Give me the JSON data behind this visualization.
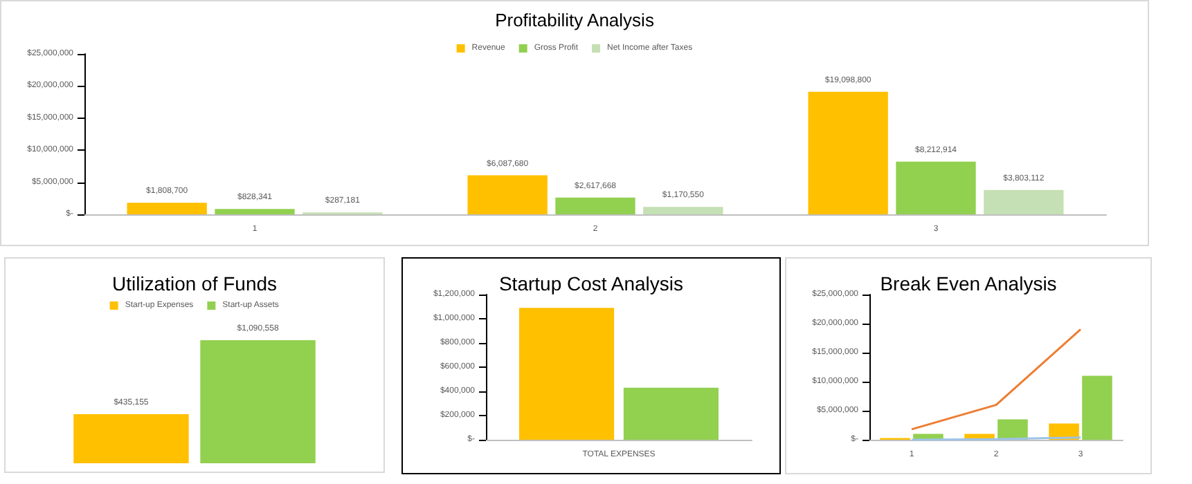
{
  "chart_data": [
    {
      "type": "bar",
      "title": "Profitability Analysis",
      "categories": [
        "1",
        "2",
        "3"
      ],
      "legend": "top",
      "grid": false,
      "ylim": [
        0,
        25000000
      ],
      "yticks": [
        {
          "value": 0,
          "label": "$-"
        },
        {
          "value": 5000000,
          "label": "$5,000,000"
        },
        {
          "value": 10000000,
          "label": "$10,000,000"
        },
        {
          "value": 15000000,
          "label": "$15,000,000"
        },
        {
          "value": 20000000,
          "label": "$20,000,000"
        },
        {
          "value": 25000000,
          "label": "$25,000,000"
        }
      ],
      "series": [
        {
          "name": "Revenue",
          "color": "#ffc000",
          "values": [
            1808700,
            6087680,
            19098800
          ],
          "value_labels": [
            "$1,808,700",
            "$6,087,680",
            "$19,098,800"
          ]
        },
        {
          "name": "Gross Profit",
          "color": "#92d050",
          "values": [
            828341,
            2617668,
            8212914
          ],
          "value_labels": [
            "$828,341",
            "$2,617,668",
            "$8,212,914"
          ]
        },
        {
          "name": "Net Income after Taxes",
          "color": "#c5e0b4",
          "values": [
            287181,
            1170550,
            3803112
          ],
          "value_labels": [
            "$287,181",
            "$1,170,550",
            "$3,803,112"
          ]
        }
      ]
    },
    {
      "type": "bar",
      "title": "Utilization of Funds",
      "categories": [
        null
      ],
      "legend": "top",
      "grid": false,
      "tick_labels": false,
      "series": [
        {
          "name": "Start-up Expenses",
          "color": "#ffc000",
          "values": [
            435155
          ],
          "value_labels": [
            "$435,155"
          ]
        },
        {
          "name": "Start-up Assets",
          "color": "#92d050",
          "values": [
            1090558
          ],
          "value_labels": [
            "$1,090,558"
          ]
        }
      ]
    },
    {
      "type": "bar",
      "title": "Startup Cost Analysis",
      "categories": [
        "TOTAL EXPENSES"
      ],
      "legend": false,
      "grid": false,
      "ylim": [
        0,
        1200000
      ],
      "yticks": [
        {
          "value": 0,
          "label": "$-"
        },
        {
          "value": 200000,
          "label": "$200,000"
        },
        {
          "value": 400000,
          "label": "$400,000"
        },
        {
          "value": 600000,
          "label": "$600,000"
        },
        {
          "value": 800000,
          "label": "$800,000"
        },
        {
          "value": 1000000,
          "label": "$1,000,000"
        },
        {
          "value": 1200000,
          "label": "$1,200,000"
        }
      ],
      "series": [
        {
          "color": "#ffc000",
          "values": [
            1090000
          ]
        },
        {
          "color": "#92d050",
          "values": [
            430000
          ]
        }
      ]
    },
    {
      "type": "bar",
      "title": "Break Even Analysis",
      "categories": [
        "1",
        "2",
        "3"
      ],
      "legend": false,
      "grid": false,
      "ylim": [
        0,
        25000000
      ],
      "yticks": [
        {
          "value": 0,
          "label": "$-"
        },
        {
          "value": 5000000,
          "label": "$5,000,000"
        },
        {
          "value": 10000000,
          "label": "$10,000,000"
        },
        {
          "value": 15000000,
          "label": "$15,000,000"
        },
        {
          "value": 20000000,
          "label": "$20,000,000"
        },
        {
          "value": 25000000,
          "label": "$25,000,000"
        }
      ],
      "series": [
        {
          "color": "#ffc000",
          "values": [
            300000,
            1000000,
            2800000
          ]
        },
        {
          "color": "#92d050",
          "values": [
            1000000,
            3500000,
            11000000
          ]
        },
        {
          "type": "line",
          "color": "#ed7d31",
          "values": [
            1800000,
            6000000,
            19000000
          ]
        },
        {
          "type": "line",
          "color": "#9dc3e6",
          "values": [
            0,
            100000,
            400000
          ]
        }
      ]
    }
  ]
}
